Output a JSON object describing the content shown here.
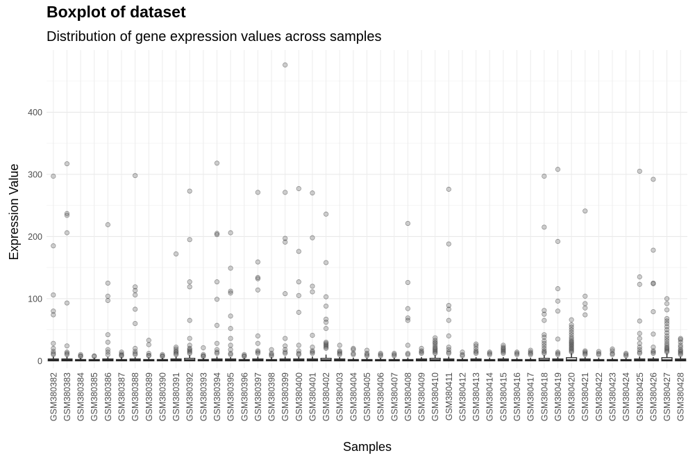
{
  "chart_data": {
    "type": "boxplot",
    "title": "Boxplot of dataset",
    "subtitle": "Distribution of gene expression values across samples",
    "xlabel": "Samples",
    "ylabel": "Expression Value",
    "ylim": [
      -12,
      500
    ],
    "yticks": [
      0,
      100,
      200,
      300,
      400
    ],
    "grid": true,
    "categories": [
      "GSM380382",
      "GSM380383",
      "GSM380384",
      "GSM380385",
      "GSM380386",
      "GSM380387",
      "GSM380388",
      "GSM380389",
      "GSM380390",
      "GSM380391",
      "GSM380392",
      "GSM380393",
      "GSM380394",
      "GSM380395",
      "GSM380396",
      "GSM380397",
      "GSM380398",
      "GSM380399",
      "GSM380400",
      "GSM380401",
      "GSM380402",
      "GSM380403",
      "GSM380404",
      "GSM380405",
      "GSM380406",
      "GSM380407",
      "GSM380408",
      "GSM380409",
      "GSM380410",
      "GSM380411",
      "GSM380412",
      "GSM380413",
      "GSM380414",
      "GSM380415",
      "GSM380416",
      "GSM380417",
      "GSM380418",
      "GSM380419",
      "GSM380420",
      "GSM380421",
      "GSM380422",
      "GSM380423",
      "GSM380424",
      "GSM380425",
      "GSM380426",
      "GSM380427",
      "GSM380428"
    ],
    "boxes": [
      {
        "q1": 0,
        "median": 1,
        "q3": 3,
        "whisker_high": 7,
        "outliers": [
          297,
          185,
          106,
          80,
          74,
          28,
          20,
          15,
          12,
          10
        ]
      },
      {
        "q1": 0,
        "median": 1,
        "q3": 3,
        "whisker_high": 7,
        "outliers": [
          317,
          237,
          234,
          206,
          93,
          24,
          14,
          12,
          10
        ]
      },
      {
        "q1": 0,
        "median": 1,
        "q3": 2,
        "whisker_high": 5,
        "outliers": [
          10,
          8,
          7
        ]
      },
      {
        "q1": 0,
        "median": 1,
        "q3": 2,
        "whisker_high": 5,
        "outliers": [
          8,
          7
        ]
      },
      {
        "q1": 0,
        "median": 1,
        "q3": 3,
        "whisker_high": 6,
        "outliers": [
          219,
          125,
          104,
          97,
          42,
          30,
          18,
          14,
          10
        ]
      },
      {
        "q1": 0,
        "median": 1,
        "q3": 2,
        "whisker_high": 6,
        "outliers": [
          14,
          11,
          9,
          8
        ]
      },
      {
        "q1": 0,
        "median": 1,
        "q3": 3,
        "whisker_high": 6,
        "outliers": [
          298,
          119,
          113,
          106,
          83,
          60,
          20,
          15,
          12,
          10
        ]
      },
      {
        "q1": 0,
        "median": 1,
        "q3": 2,
        "whisker_high": 5,
        "outliers": [
          33,
          26,
          12,
          9,
          8
        ]
      },
      {
        "q1": 0,
        "median": 1,
        "q3": 2,
        "whisker_high": 5,
        "outliers": [
          10,
          8,
          7
        ]
      },
      {
        "q1": 0,
        "median": 1,
        "q3": 3,
        "whisker_high": 7,
        "outliers": [
          172,
          22,
          19,
          16,
          14,
          12,
          10
        ]
      },
      {
        "q1": 0,
        "median": 1,
        "q3": 4,
        "whisker_high": 9,
        "outliers": [
          273,
          195,
          127,
          119,
          65,
          36,
          25,
          20,
          18,
          16,
          14,
          12
        ]
      },
      {
        "q1": 0,
        "median": 1,
        "q3": 2,
        "whisker_high": 5,
        "outliers": [
          21,
          10,
          8,
          7
        ]
      },
      {
        "q1": 0,
        "median": 1,
        "q3": 3,
        "whisker_high": 7,
        "outliers": [
          318,
          205,
          203,
          127,
          99,
          57,
          28,
          18,
          14,
          12
        ]
      },
      {
        "q1": 0,
        "median": 1,
        "q3": 3,
        "whisker_high": 6,
        "outliers": [
          206,
          149,
          112,
          109,
          72,
          52,
          36,
          25,
          18,
          12,
          10
        ]
      },
      {
        "q1": 0,
        "median": 1,
        "q3": 2,
        "whisker_high": 5,
        "outliers": [
          10,
          8,
          7
        ]
      },
      {
        "q1": 0,
        "median": 1,
        "q3": 3,
        "whisker_high": 7,
        "outliers": [
          271,
          159,
          134,
          132,
          114,
          40,
          28,
          16,
          14,
          12
        ]
      },
      {
        "q1": 0,
        "median": 1,
        "q3": 2,
        "whisker_high": 6,
        "outliers": [
          18,
          12,
          10,
          8
        ]
      },
      {
        "q1": 0,
        "median": 1,
        "q3": 3,
        "whisker_high": 7,
        "outliers": [
          476,
          271,
          197,
          191,
          108,
          36,
          24,
          18,
          14,
          12
        ]
      },
      {
        "q1": 0,
        "median": 1,
        "q3": 3,
        "whisker_high": 7,
        "outliers": [
          277,
          176,
          127,
          105,
          78,
          25,
          16,
          12,
          10
        ]
      },
      {
        "q1": 0,
        "median": 1,
        "q3": 3,
        "whisker_high": 7,
        "outliers": [
          270,
          198,
          120,
          111,
          41,
          22,
          16,
          14,
          12
        ]
      },
      {
        "q1": 0,
        "median": 1,
        "q3": 4,
        "whisker_high": 10,
        "outliers": [
          236,
          158,
          103,
          88,
          67,
          62,
          52,
          30,
          28,
          26,
          24,
          22,
          20
        ]
      },
      {
        "q1": 0,
        "median": 1,
        "q3": 3,
        "whisker_high": 6,
        "outliers": [
          25,
          16,
          14,
          12,
          10
        ]
      },
      {
        "q1": 0,
        "median": 1,
        "q3": 2,
        "whisker_high": 5,
        "outliers": [
          20,
          18,
          12,
          10
        ]
      },
      {
        "q1": 0,
        "median": 1,
        "q3": 2,
        "whisker_high": 5,
        "outliers": [
          17,
          12,
          10,
          8
        ]
      },
      {
        "q1": 0,
        "median": 1,
        "q3": 2,
        "whisker_high": 5,
        "outliers": [
          12,
          10,
          8
        ]
      },
      {
        "q1": 0,
        "median": 1,
        "q3": 2,
        "whisker_high": 5,
        "outliers": [
          12,
          10,
          8
        ]
      },
      {
        "q1": 0,
        "median": 1,
        "q3": 2,
        "whisker_high": 5,
        "outliers": [
          221,
          126,
          84,
          69,
          65,
          25,
          12,
          10
        ]
      },
      {
        "q1": 0,
        "median": 1,
        "q3": 3,
        "whisker_high": 6,
        "outliers": [
          20,
          16,
          14,
          12
        ]
      },
      {
        "q1": 0,
        "median": 1,
        "q3": 4,
        "whisker_high": 9,
        "outliers": [
          37,
          33,
          30,
          28,
          25,
          22,
          20,
          18,
          16,
          14,
          12
        ]
      },
      {
        "q1": 0,
        "median": 1,
        "q3": 3,
        "whisker_high": 7,
        "outliers": [
          276,
          188,
          89,
          83,
          65,
          40,
          22,
          18,
          14,
          12
        ]
      },
      {
        "q1": 0,
        "median": 1,
        "q3": 2,
        "whisker_high": 5,
        "outliers": [
          14,
          10,
          8
        ]
      },
      {
        "q1": 0,
        "median": 1,
        "q3": 3,
        "whisker_high": 6,
        "outliers": [
          27,
          24,
          20,
          16,
          14,
          12
        ]
      },
      {
        "q1": 0,
        "median": 1,
        "q3": 2,
        "whisker_high": 5,
        "outliers": [
          14,
          12,
          10
        ]
      },
      {
        "q1": 0,
        "median": 1,
        "q3": 3,
        "whisker_high": 6,
        "outliers": [
          25,
          22,
          20,
          18,
          16,
          14,
          12
        ]
      },
      {
        "q1": 0,
        "median": 1,
        "q3": 2,
        "whisker_high": 5,
        "outliers": [
          14,
          12,
          10
        ]
      },
      {
        "q1": 0,
        "median": 1,
        "q3": 2,
        "whisker_high": 5,
        "outliers": [
          17,
          14,
          12,
          10
        ]
      },
      {
        "q1": 0,
        "median": 1,
        "q3": 4,
        "whisker_high": 9,
        "outliers": [
          297,
          215,
          81,
          75,
          65,
          42,
          38,
          32,
          28,
          24,
          20,
          16,
          14,
          12
        ]
      },
      {
        "q1": 0,
        "median": 1,
        "q3": 3,
        "whisker_high": 6,
        "outliers": [
          308,
          192,
          116,
          96,
          80,
          35,
          14,
          12,
          10
        ]
      },
      {
        "q1": 0,
        "median": 1,
        "q3": 5,
        "whisker_high": 12,
        "outliers": [
          66,
          58,
          54,
          50,
          46,
          42,
          38,
          35,
          32,
          30,
          28,
          26,
          24,
          22,
          20,
          18,
          16,
          14
        ]
      },
      {
        "q1": 0,
        "median": 1,
        "q3": 3,
        "whisker_high": 6,
        "outliers": [
          241,
          104,
          92,
          85,
          74,
          16,
          14,
          12,
          10
        ]
      },
      {
        "q1": 0,
        "median": 1,
        "q3": 2,
        "whisker_high": 5,
        "outliers": [
          15,
          12,
          10
        ]
      },
      {
        "q1": 0,
        "median": 1,
        "q3": 2,
        "whisker_high": 5,
        "outliers": [
          19,
          16,
          12,
          10
        ]
      },
      {
        "q1": 0,
        "median": 1,
        "q3": 2,
        "whisker_high": 5,
        "outliers": [
          12,
          10,
          8
        ]
      },
      {
        "q1": 0,
        "median": 1,
        "q3": 3,
        "whisker_high": 7,
        "outliers": [
          305,
          135,
          123,
          64,
          44,
          36,
          28,
          22,
          18,
          14,
          12
        ]
      },
      {
        "q1": 0,
        "median": 1,
        "q3": 3,
        "whisker_high": 6,
        "outliers": [
          292,
          178,
          125,
          124,
          79,
          43,
          22,
          16,
          14,
          12
        ]
      },
      {
        "q1": 0,
        "median": 1,
        "q3": 5,
        "whisker_high": 12,
        "outliers": [
          100,
          92,
          82,
          68,
          64,
          60,
          55,
          50,
          45,
          40,
          36,
          32,
          28,
          25,
          22,
          20,
          18,
          16,
          14
        ]
      },
      {
        "q1": 0,
        "median": 1,
        "q3": 3,
        "whisker_high": 7,
        "outliers": [
          36,
          34,
          30,
          25,
          22,
          18,
          16,
          14,
          12,
          10
        ]
      }
    ]
  }
}
